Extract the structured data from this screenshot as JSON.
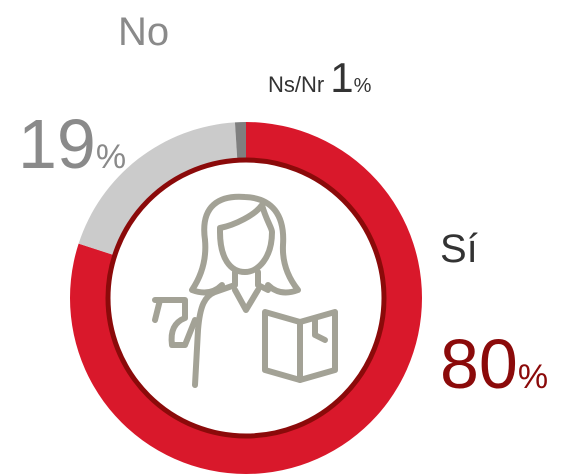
{
  "chart_data": {
    "type": "pie",
    "donut": true,
    "categories": [
      "Sí",
      "No",
      "Ns/Nr"
    ],
    "values": [
      80,
      19,
      1
    ],
    "unit": "%",
    "colors": [
      "#d9182b",
      "#cbcbcb",
      "#7f7f7f"
    ],
    "label_colors": [
      "#8b0a0a",
      "#8a8a8a",
      "#333333"
    ]
  }
}
